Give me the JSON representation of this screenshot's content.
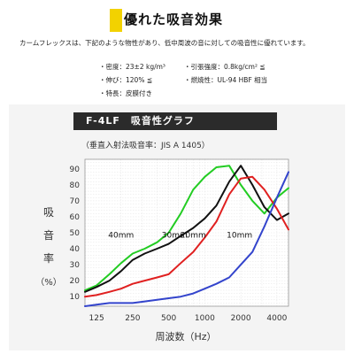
{
  "heading": "優れた吸音効果",
  "intro": "カームフレックスは、下記のような物性があり、低中周波の音に対しての吸音性に優れています。",
  "specs": {
    "density": "・密度：23±2 kg/m³",
    "elongation": "・伸び：120% ≦",
    "feature": "・特長：皮膜付き",
    "tensile": "・引張強度：0.8kg/cm² ≦",
    "flammability": "・燃焼性：UL-94 HBF 相当"
  },
  "colors": {
    "heading_accent": "#f2d200",
    "title_bg": "#2b2b2b",
    "series_40mm": "#22cc22",
    "series_30mm": "#111111",
    "series_20mm": "#e02020",
    "series_10mm": "#3344cc"
  },
  "chart_data": {
    "type": "line",
    "title": "F-4LF　吸音性グラフ",
    "subtitle": "（垂直入射法吸音率：JIS A 1405）",
    "xlabel": "周波数（Hz）",
    "ylabel": [
      "吸",
      "音",
      "率",
      "（%）"
    ],
    "x_scale": "log",
    "x_ticks": [
      125,
      250,
      500,
      1000,
      2000,
      4000
    ],
    "x_tick_labels": [
      "125",
      "250",
      "500",
      "1000",
      "2000",
      "4000"
    ],
    "xlim": [
      100,
      5000
    ],
    "y_ticks": [
      10,
      20,
      30,
      40,
      50,
      60,
      70,
      80,
      90
    ],
    "y_tick_labels": [
      "10",
      "20",
      "30",
      "40",
      "50",
      "60",
      "70",
      "80",
      "90"
    ],
    "ylim": [
      4,
      96
    ],
    "grid": true,
    "series": [
      {
        "name": "40mm",
        "x": [
          100,
          125,
          160,
          200,
          250,
          315,
          400,
          500,
          630,
          800,
          1000,
          1250,
          1600,
          2000,
          2500,
          3150,
          4000,
          5000
        ],
        "y": [
          14,
          17,
          24,
          31,
          37,
          40,
          44,
          50,
          62,
          77,
          85,
          91,
          92,
          80,
          70,
          62,
          72,
          78
        ]
      },
      {
        "name": "30mm",
        "x": [
          100,
          125,
          160,
          200,
          250,
          315,
          400,
          500,
          630,
          800,
          1000,
          1250,
          1600,
          2000,
          2500,
          3150,
          4000,
          5000
        ],
        "y": [
          13,
          16,
          20,
          26,
          33,
          37,
          40,
          43,
          48,
          53,
          59,
          67,
          82,
          92,
          80,
          66,
          58,
          62
        ]
      },
      {
        "name": "20mm",
        "x": [
          100,
          125,
          160,
          200,
          250,
          315,
          400,
          500,
          630,
          800,
          1000,
          1250,
          1600,
          2000,
          2500,
          3150,
          4000,
          5000
        ],
        "y": [
          10,
          11,
          13,
          15,
          18,
          20,
          22,
          24,
          31,
          38,
          47,
          57,
          74,
          84,
          85,
          77,
          65,
          52
        ]
      },
      {
        "name": "10mm",
        "x": [
          100,
          125,
          160,
          200,
          250,
          315,
          400,
          500,
          630,
          800,
          1000,
          1250,
          1600,
          2000,
          2500,
          3150,
          4000,
          5000
        ],
        "y": [
          4,
          5,
          6,
          6,
          6,
          7,
          8,
          9,
          10,
          12,
          15,
          18,
          22,
          30,
          38,
          54,
          72,
          88
        ]
      }
    ]
  }
}
